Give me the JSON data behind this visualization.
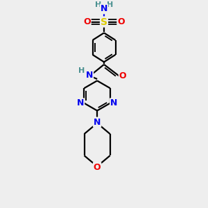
{
  "bg_color": "#eeeeee",
  "atom_colors": {
    "C": "#000000",
    "N": "#0000ee",
    "O": "#ee0000",
    "S": "#ddcc00",
    "H": "#4a9090"
  },
  "bond_color": "#000000",
  "bond_width": 1.6,
  "font_size_atoms": 9,
  "font_size_h": 8
}
